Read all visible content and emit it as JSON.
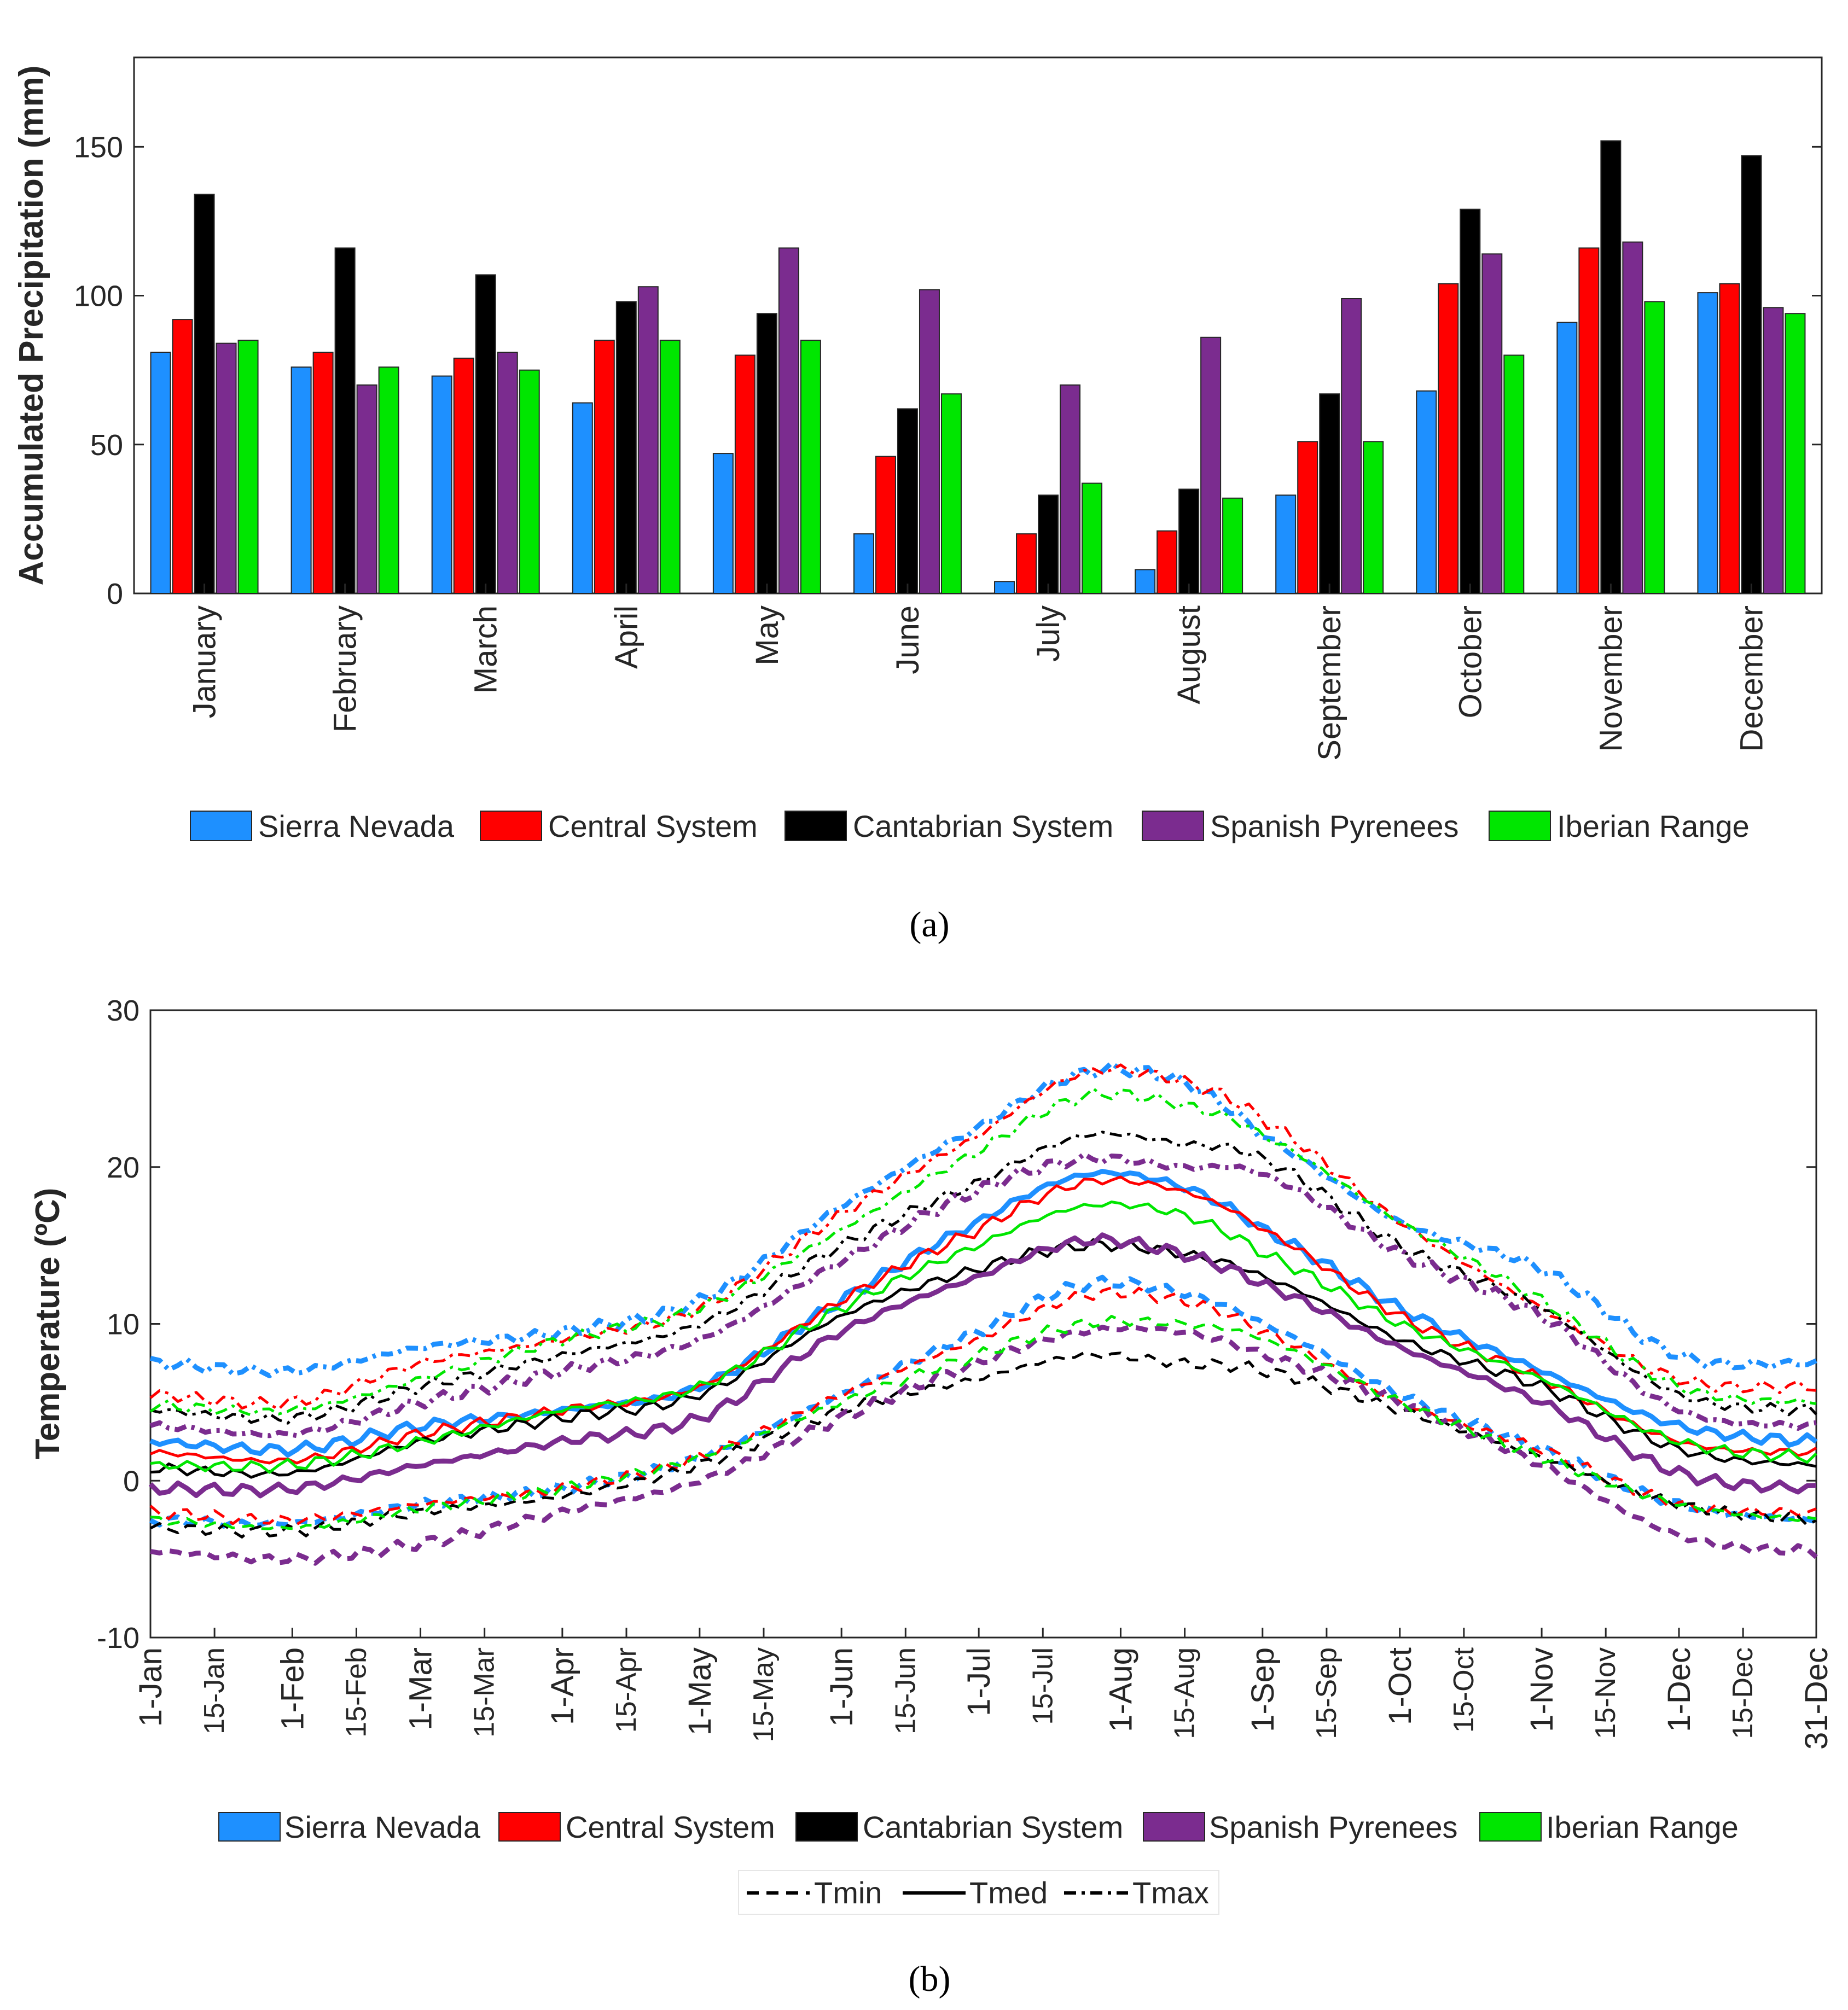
{
  "chart_data": [
    {
      "type": "bar",
      "panel_label": "a",
      "ylabel": "Accumulated Precipitation (mm)",
      "xlabel": "",
      "ylim": [
        0,
        180
      ],
      "yticks": [
        0,
        50,
        100,
        150
      ],
      "categories": [
        "January",
        "February",
        "March",
        "April",
        "May",
        "June",
        "July",
        "August",
        "September",
        "October",
        "November",
        "December"
      ],
      "series": [
        {
          "name": "Sierra Nevada",
          "color": "#1E90FF",
          "values": [
            81,
            76,
            73,
            64,
            47,
            20,
            4,
            8,
            33,
            68,
            91,
            101
          ]
        },
        {
          "name": "Central System",
          "color": "#FF0000",
          "values": [
            92,
            81,
            79,
            85,
            80,
            46,
            20,
            21,
            51,
            104,
            116,
            104
          ]
        },
        {
          "name": "Cantabrian System",
          "color": "#000000",
          "values": [
            134,
            116,
            107,
            98,
            94,
            62,
            33,
            35,
            67,
            129,
            152,
            147
          ]
        },
        {
          "name": "Spanish Pyrenees",
          "color": "#7B2C8F",
          "values": [
            84,
            70,
            81,
            103,
            116,
            102,
            70,
            86,
            99,
            114,
            118,
            96
          ]
        },
        {
          "name": "Iberian Range",
          "color": "#00E600",
          "values": [
            85,
            76,
            75,
            85,
            85,
            67,
            37,
            32,
            51,
            80,
            98,
            94
          ]
        }
      ],
      "legend_position": "bottom"
    },
    {
      "type": "line",
      "panel_label": "b",
      "ylabel": "Temperature (ºC)",
      "xlabel": "",
      "ylim": [
        -10,
        30
      ],
      "yticks": [
        -10,
        0,
        10,
        20,
        30
      ],
      "xlim": [
        1,
        365
      ],
      "x_ticks": [
        {
          "day": 1,
          "label": "1-Jan",
          "major": true
        },
        {
          "day": 15,
          "label": "15-Jan",
          "major": false
        },
        {
          "day": 32,
          "label": "1-Feb",
          "major": true
        },
        {
          "day": 46,
          "label": "15-Feb",
          "major": false
        },
        {
          "day": 60,
          "label": "1-Mar",
          "major": true
        },
        {
          "day": 74,
          "label": "15-Mar",
          "major": false
        },
        {
          "day": 91,
          "label": "1-Apr",
          "major": true
        },
        {
          "day": 105,
          "label": "15-Apr",
          "major": false
        },
        {
          "day": 121,
          "label": "1-May",
          "major": true
        },
        {
          "day": 135,
          "label": "15-May",
          "major": false
        },
        {
          "day": 152,
          "label": "1-Jun",
          "major": true
        },
        {
          "day": 166,
          "label": "15-Jun",
          "major": false
        },
        {
          "day": 182,
          "label": "1-Jul",
          "major": true
        },
        {
          "day": 196,
          "label": "15-Jul",
          "major": false
        },
        {
          "day": 213,
          "label": "1-Aug",
          "major": true
        },
        {
          "day": 227,
          "label": "15-Aug",
          "major": false
        },
        {
          "day": 244,
          "label": "1-Sep",
          "major": true
        },
        {
          "day": 258,
          "label": "15-Sep",
          "major": false
        },
        {
          "day": 274,
          "label": "1-Oct",
          "major": true
        },
        {
          "day": 288,
          "label": "15-Oct",
          "major": false
        },
        {
          "day": 305,
          "label": "1-Nov",
          "major": true
        },
        {
          "day": 319,
          "label": "15-Nov",
          "major": false
        },
        {
          "day": 335,
          "label": "1-Dec",
          "major": true
        },
        {
          "day": 349,
          "label": "15-Dec",
          "major": false
        },
        {
          "day": 365,
          "label": "31-Dec",
          "major": true
        }
      ],
      "series_x_days": [
        1,
        32,
        60,
        91,
        121,
        152,
        182,
        205,
        226,
        244,
        274,
        305,
        335,
        365
      ],
      "series": [
        {
          "name": "Sierra Nevada",
          "color": "#1E90FF",
          "stat": "Tmax",
          "values": [
            7.5,
            7.0,
            8.5,
            9.5,
            11.5,
            17.5,
            22.5,
            26.0,
            25.5,
            22.0,
            16.5,
            13.5,
            8.0,
            7.5
          ]
        },
        {
          "name": "Sierra Nevada",
          "color": "#1E90FF",
          "stat": "Tmed",
          "values": [
            2.5,
            2.0,
            3.5,
            4.5,
            6.0,
            11.5,
            16.5,
            19.5,
            18.8,
            16.0,
            11.0,
            7.0,
            3.5,
            2.5
          ]
        },
        {
          "name": "Sierra Nevada",
          "color": "#1E90FF",
          "stat": "Tmin",
          "values": [
            -2.5,
            -2.7,
            -1.5,
            -0.5,
            1.5,
            5.5,
            9.5,
            12.5,
            12.0,
            10.0,
            5.5,
            2.0,
            -1.5,
            -2.5
          ]
        },
        {
          "name": "Central System",
          "color": "#FF0000",
          "stat": "Tmax",
          "values": [
            5.5,
            5.0,
            7.5,
            9.0,
            11.0,
            17.0,
            22.0,
            26.0,
            25.5,
            23.0,
            16.5,
            11.0,
            6.5,
            6.0
          ]
        },
        {
          "name": "Central System",
          "color": "#FF0000",
          "stat": "Tmed",
          "values": [
            1.8,
            1.3,
            3.0,
            4.5,
            6.0,
            11.5,
            16.0,
            19.0,
            18.5,
            16.0,
            10.5,
            6.5,
            2.5,
            1.8
          ]
        },
        {
          "name": "Central System",
          "color": "#FF0000",
          "stat": "Tmin",
          "values": [
            -2.0,
            -2.5,
            -1.5,
            -0.5,
            1.5,
            5.5,
            9.0,
            11.8,
            11.5,
            9.5,
            5.0,
            2.0,
            -1.5,
            -2.0
          ]
        },
        {
          "name": "Cantabrian System",
          "color": "#000000",
          "stat": "Tmax",
          "values": [
            4.5,
            4.0,
            6.0,
            8.0,
            10.0,
            15.0,
            19.0,
            22.0,
            21.5,
            20.5,
            15.0,
            11.0,
            5.5,
            4.5
          ]
        },
        {
          "name": "Cantabrian System",
          "color": "#000000",
          "stat": "Tmed",
          "values": [
            0.8,
            0.5,
            2.5,
            4.0,
            5.5,
            10.5,
            13.5,
            15.0,
            14.5,
            13.0,
            9.0,
            6.0,
            2.0,
            1.0
          ]
        },
        {
          "name": "Cantabrian System",
          "color": "#000000",
          "stat": "Tmin",
          "values": [
            -3.0,
            -3.2,
            -2.0,
            -1.0,
            1.0,
            4.5,
            6.5,
            8.0,
            7.5,
            7.0,
            4.5,
            1.5,
            -1.5,
            -2.5
          ]
        },
        {
          "name": "Spanish Pyrenees",
          "color": "#7B2C8F",
          "stat": "Tmax",
          "values": [
            3.5,
            3.0,
            5.0,
            7.0,
            9.0,
            14.0,
            18.5,
            20.5,
            20.0,
            19.5,
            14.5,
            10.5,
            4.5,
            3.5
          ]
        },
        {
          "name": "Spanish Pyrenees",
          "color": "#7B2C8F",
          "stat": "Tmed",
          "values": [
            -0.5,
            -0.5,
            1.0,
            2.5,
            4.0,
            9.5,
            13.0,
            15.3,
            14.5,
            12.5,
            8.5,
            5.0,
            0.5,
            -0.5
          ]
        },
        {
          "name": "Spanish Pyrenees",
          "color": "#7B2C8F",
          "stat": "Tmin",
          "values": [
            -4.5,
            -5.0,
            -4.0,
            -2.0,
            0.0,
            4.0,
            7.5,
            9.5,
            9.5,
            8.0,
            5.0,
            1.0,
            -3.5,
            -4.5
          ]
        },
        {
          "name": "Iberian Range",
          "color": "#00E600",
          "stat": "Tmax",
          "values": [
            4.8,
            4.5,
            6.5,
            9.0,
            11.0,
            16.0,
            21.0,
            24.5,
            24.0,
            22.0,
            16.5,
            11.5,
            6.0,
            5.0
          ]
        },
        {
          "name": "Iberian Range",
          "color": "#00E600",
          "stat": "Tmed",
          "values": [
            1.0,
            1.0,
            2.5,
            4.5,
            6.0,
            11.0,
            15.0,
            17.5,
            17.0,
            14.5,
            10.0,
            6.5,
            2.5,
            1.5
          ]
        },
        {
          "name": "Iberian Range",
          "color": "#00E600",
          "stat": "Tmin",
          "values": [
            -2.5,
            -3.0,
            -1.8,
            -0.5,
            1.5,
            5.0,
            8.0,
            10.0,
            10.0,
            9.0,
            5.0,
            1.5,
            -1.5,
            -2.5
          ]
        }
      ],
      "legend_position": "bottom",
      "line_style_legend": [
        "Tmin",
        "Tmed",
        "Tmax"
      ]
    }
  ],
  "legend_a": [
    "Sierra Nevada",
    "Central System",
    "Cantabrian System",
    "Spanish Pyrenees",
    "Iberian Range"
  ],
  "legend_b": [
    "Sierra Nevada",
    "Central System",
    "Cantabrian System",
    "Spanish Pyrenees",
    "Iberian Range"
  ],
  "legend_b_styles": [
    "Tmin",
    "Tmed",
    "Tmax"
  ],
  "captions": {
    "a": "(a)",
    "b": "(b)"
  }
}
